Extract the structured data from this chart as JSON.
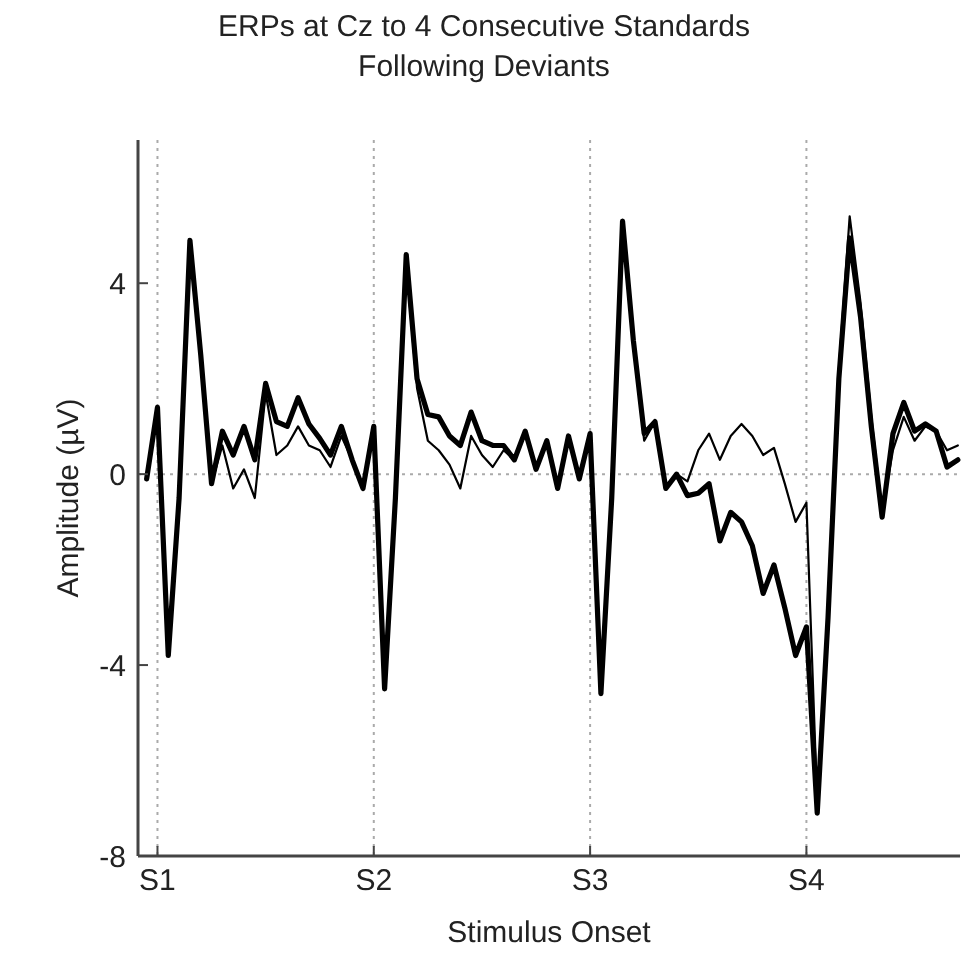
{
  "chart_data": {
    "type": "line",
    "title": "ERPs at Cz to 4 Consecutive Standards\nFollowing Deviants",
    "xlabel": "Stimulus Onset",
    "ylabel": "Amplitude (µV)",
    "categories": [
      null,
      "S1",
      null,
      null,
      null,
      null,
      null,
      null,
      null,
      null,
      null,
      null,
      null,
      null,
      null,
      null,
      null,
      null,
      null,
      null,
      null,
      "S2",
      null,
      null,
      null,
      null,
      null,
      null,
      null,
      null,
      null,
      null,
      null,
      null,
      null,
      null,
      null,
      null,
      null,
      null,
      null,
      "S3",
      null,
      null,
      null,
      null,
      null,
      null,
      null,
      null,
      null,
      null,
      null,
      null,
      null,
      null,
      null,
      null,
      null,
      null,
      null,
      "S4",
      null,
      null,
      null,
      null,
      null,
      null,
      null,
      null,
      null,
      null,
      null,
      null,
      null,
      null
    ],
    "series": [
      {
        "color": "#000000",
        "values": [
          -0.1,
          1.4,
          -3.8,
          -0.5,
          4.9,
          2.5,
          -0.2,
          0.9,
          0.4,
          1.0,
          0.3,
          1.9,
          1.1,
          1.0,
          1.6,
          1.05,
          0.75,
          0.4,
          1.0,
          0.3,
          -0.3,
          1.0,
          -4.5,
          -0.5,
          4.6,
          2.0,
          1.25,
          1.2,
          0.8,
          0.6,
          1.3,
          0.7,
          0.6,
          0.6,
          0.3,
          0.9,
          0.1,
          0.7,
          -0.3,
          0.8,
          -0.1,
          0.85,
          -4.6,
          -0.5,
          5.3,
          2.8,
          0.85,
          1.1,
          -0.3,
          0.0,
          -0.45,
          -0.4,
          -0.2,
          -1.4,
          -0.8,
          -1.0,
          -1.5,
          -2.5,
          -1.9,
          -2.8,
          -3.8,
          -3.2,
          -7.1,
          -3.0,
          2.0,
          4.95,
          3.3,
          1.0,
          -0.9,
          0.85,
          1.5,
          0.9,
          1.05,
          0.9,
          0.15,
          0.3
        ]
      },
      {
        "color": "#000000",
        "values": [
          -0.1,
          1.4,
          -3.7,
          -0.5,
          4.8,
          2.4,
          -0.2,
          0.6,
          -0.3,
          0.1,
          -0.5,
          1.7,
          0.4,
          0.6,
          1.0,
          0.6,
          0.5,
          0.15,
          0.8,
          0.3,
          -0.3,
          1.0,
          -4.4,
          -0.5,
          4.4,
          1.8,
          0.7,
          0.5,
          0.2,
          -0.3,
          0.8,
          0.4,
          0.15,
          0.5,
          0.3,
          0.9,
          0.1,
          0.7,
          -0.3,
          0.8,
          -0.1,
          0.85,
          -4.5,
          -0.5,
          5.3,
          2.7,
          0.7,
          1.1,
          -0.3,
          0.0,
          -0.15,
          0.5,
          0.85,
          0.3,
          0.8,
          1.05,
          0.8,
          0.4,
          0.55,
          -0.2,
          -1.0,
          -0.6,
          -6.9,
          -2.8,
          2.2,
          5.4,
          3.6,
          1.2,
          -0.8,
          0.5,
          1.2,
          0.7,
          1.0,
          0.9,
          0.5,
          0.6
        ]
      }
    ],
    "ylim": [
      -8,
      7
    ],
    "yticks": [
      -8,
      -4,
      0,
      4
    ],
    "ref_lines": [
      {
        "axis": "y",
        "value": 0,
        "color": "#aaaaaa",
        "line_style": "dotted"
      }
    ],
    "grid": "x",
    "marker": "none",
    "line_style": "solid"
  }
}
